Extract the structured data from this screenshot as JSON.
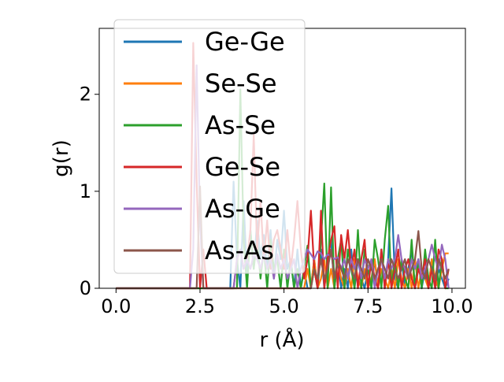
{
  "chart_data": {
    "type": "line",
    "xlabel": "r (Å)",
    "ylabel": "g(r)",
    "xlim": [
      -0.5,
      10.4
    ],
    "ylim": [
      0,
      2.68
    ],
    "xticks": [
      {
        "value": 0.0,
        "label": "0.0"
      },
      {
        "value": 2.5,
        "label": "2.5"
      },
      {
        "value": 5.0,
        "label": "5.0"
      },
      {
        "value": 7.5,
        "label": "7.5"
      },
      {
        "value": 10.0,
        "label": "10.0"
      }
    ],
    "yticks": [
      {
        "value": 0,
        "label": "0"
      },
      {
        "value": 1,
        "label": "1"
      },
      {
        "value": 2,
        "label": "2"
      }
    ],
    "grid": false,
    "legend_position": "top-left",
    "series": [
      {
        "name": "Ge-Ge",
        "color": "#1f77b4",
        "x": [
          0,
          3.4,
          3.5,
          3.6,
          3.7,
          3.8,
          3.9,
          4.0,
          4.1,
          4.2,
          4.3,
          4.4,
          4.5,
          4.6,
          4.7,
          4.8,
          4.9,
          5.0,
          5.1,
          5.2,
          5.3,
          5.4,
          5.5,
          5.6,
          5.7,
          5.8,
          5.9,
          6.0,
          6.1,
          6.2,
          6.3,
          6.4,
          6.5,
          6.6,
          6.7,
          6.8,
          6.9,
          7.0,
          7.1,
          7.2,
          7.3,
          7.4,
          7.5,
          7.6,
          7.7,
          7.8,
          7.9,
          8.0,
          8.1,
          8.2,
          8.3,
          8.4,
          8.5,
          8.6,
          8.7,
          8.8,
          8.9,
          9.0,
          9.1,
          9.2,
          9.3,
          9.4,
          9.5,
          9.6,
          9.7,
          9.8,
          9.9
        ],
        "y": [
          0,
          0,
          1.1,
          0.3,
          0,
          0.9,
          0.1,
          0.6,
          0.2,
          0.7,
          0.3,
          0.55,
          0.2,
          0.6,
          0.1,
          0.5,
          0.3,
          0.8,
          0.2,
          0.3,
          0,
          0.4,
          0,
          0.2,
          0,
          0,
          0.3,
          0,
          0.4,
          0,
          0.3,
          0.5,
          0,
          0.3,
          0,
          0.2,
          0,
          0.4,
          0,
          0.3,
          0.1,
          0,
          0.2,
          0,
          0.3,
          0,
          0.4,
          0,
          0.3,
          1.03,
          0.1,
          0,
          0.3,
          0,
          0.2,
          0.4,
          0,
          0.3,
          0,
          0.2,
          0,
          0.3,
          0,
          0.2,
          0.1,
          0,
          0.1
        ]
      },
      {
        "name": "Se-Se",
        "color": "#ff7f0e",
        "x": [
          0,
          5.6,
          5.7,
          5.8,
          5.9,
          6.0,
          6.1,
          6.2,
          6.3,
          6.4,
          6.5,
          6.6,
          6.7,
          6.8,
          6.9,
          7.0,
          7.1,
          7.2,
          7.3,
          7.4,
          7.5,
          7.6,
          7.7,
          7.8,
          7.9,
          8.0,
          8.1,
          8.2,
          8.3,
          8.4,
          8.5,
          8.6,
          8.7,
          8.8,
          8.9,
          9.0,
          9.1,
          9.2,
          9.3,
          9.4,
          9.5,
          9.6,
          9.7,
          9.8,
          9.9
        ],
        "y": [
          0,
          0,
          0.2,
          0,
          0.3,
          0,
          0.1,
          0.3,
          0,
          0.2,
          0,
          0.3,
          0.1,
          0,
          0.2,
          0,
          0.3,
          0.1,
          0,
          0.2,
          0,
          0.1,
          0.3,
          0,
          0.2,
          0.1,
          0,
          0.2,
          0,
          0.3,
          0.1,
          0,
          0.2,
          0,
          0.3,
          0,
          0.2,
          0.1,
          0,
          0.3,
          0.1,
          0,
          0.2,
          0.36,
          0.36
        ]
      },
      {
        "name": "As-Se",
        "color": "#2ca02c",
        "x": [
          0,
          3.6,
          3.7,
          3.8,
          3.9,
          4.0,
          4.1,
          4.2,
          4.3,
          4.4,
          4.5,
          4.6,
          4.7,
          4.8,
          4.9,
          5.0,
          5.1,
          5.2,
          5.3,
          5.4,
          5.5,
          5.6,
          5.7,
          5.8,
          5.9,
          6.0,
          6.1,
          6.2,
          6.3,
          6.4,
          6.5,
          6.6,
          6.7,
          6.8,
          6.9,
          7.0,
          7.1,
          7.2,
          7.3,
          7.4,
          7.5,
          7.6,
          7.7,
          7.8,
          7.9,
          8.0,
          8.1,
          8.2,
          8.3,
          8.4,
          8.5,
          8.6,
          8.7,
          8.8,
          8.9,
          9.0,
          9.1,
          9.2,
          9.3,
          9.4,
          9.5,
          9.6,
          9.7,
          9.8,
          9.9
        ],
        "y": [
          0,
          0,
          2.05,
          0.5,
          0,
          0.6,
          0.2,
          0.5,
          0.1,
          0.4,
          0,
          0.5,
          0.2,
          0.3,
          0,
          0.4,
          0,
          0.3,
          0,
          0.2,
          0,
          0.2,
          0.44,
          0,
          0.2,
          0,
          0.5,
          1.08,
          0,
          1.04,
          0,
          0.3,
          0.5,
          0,
          0.4,
          0.2,
          0,
          0.6,
          0,
          0.4,
          0.2,
          0,
          0.5,
          0.3,
          0,
          0.5,
          0.85,
          0,
          0.3,
          0,
          0.3,
          0.1,
          0,
          0.5,
          0,
          0.3,
          0,
          0.4,
          0.1,
          0,
          0.5,
          0,
          0.3,
          0,
          0
        ]
      },
      {
        "name": "Ge-Se",
        "color": "#d62728",
        "x": [
          0,
          2.2,
          2.3,
          2.4,
          2.5,
          2.6,
          2.7,
          2.8,
          3.0,
          3.5,
          3.6,
          3.7,
          3.8,
          3.9,
          4.0,
          4.1,
          4.2,
          4.3,
          4.4,
          4.5,
          4.6,
          4.7,
          4.8,
          4.9,
          5.0,
          5.1,
          5.2,
          5.3,
          5.4,
          5.5,
          5.6,
          5.7,
          5.8,
          5.9,
          6.0,
          6.1,
          6.2,
          6.3,
          6.4,
          6.5,
          6.6,
          6.7,
          6.8,
          6.9,
          7.0,
          7.1,
          7.2,
          7.3,
          7.4,
          7.5,
          7.6,
          7.7,
          7.8,
          7.9,
          8.0,
          8.1,
          8.2,
          8.3,
          8.4,
          8.5,
          8.6,
          8.7,
          8.8,
          8.9,
          9.0,
          9.1,
          9.2,
          9.3,
          9.4,
          9.5,
          9.6,
          9.7,
          9.8,
          9.9
        ],
        "y": [
          0,
          0,
          2.53,
          1.1,
          0,
          0.4,
          0,
          0,
          0,
          0,
          0.3,
          0.4,
          0.2,
          0.3,
          0.6,
          1.58,
          0.4,
          0.9,
          0.3,
          0.7,
          0.2,
          0.5,
          0.6,
          0.4,
          0.2,
          0.6,
          0.2,
          0.5,
          0.9,
          0.4,
          0.1,
          0.3,
          0.8,
          0.2,
          0,
          0.8,
          0,
          0.3,
          0.5,
          0.64,
          0,
          0.55,
          0.3,
          0.6,
          0.2,
          0.4,
          0,
          0.3,
          0.5,
          0,
          0.3,
          0.1,
          0,
          0.4,
          0,
          0.3,
          0,
          0.2,
          0.4,
          0,
          0.2,
          0.3,
          0.1,
          0,
          0.2,
          0.1,
          0.3,
          0,
          0.2,
          0,
          0.4,
          0.3,
          0,
          0.2
        ]
      },
      {
        "name": "As-Ge",
        "color": "#9467bd",
        "x": [
          0,
          2.2,
          2.3,
          2.4,
          2.5,
          2.6,
          2.7,
          3.5,
          3.6,
          3.7,
          3.8,
          3.9,
          4.0,
          4.1,
          4.2,
          4.3,
          4.4,
          4.5,
          4.6,
          4.7,
          4.8,
          4.9,
          5.0,
          5.1,
          5.2,
          5.3,
          5.4,
          5.5,
          5.6,
          5.7,
          5.8,
          5.9,
          6.0,
          6.1,
          6.2,
          6.3,
          6.4,
          6.5,
          6.6,
          6.7,
          6.8,
          6.9,
          7.0,
          7.1,
          7.2,
          7.3,
          7.4,
          7.5,
          7.6,
          7.7,
          7.8,
          7.9,
          8.0,
          8.1,
          8.2,
          8.3,
          8.4,
          8.5,
          8.6,
          8.7,
          8.8,
          8.9,
          9.0,
          9.1,
          9.2,
          9.3,
          9.4,
          9.5,
          9.6,
          9.7,
          9.8,
          9.9
        ],
        "y": [
          0,
          0,
          0.4,
          2.3,
          0.7,
          0,
          0,
          0,
          0.3,
          0.4,
          0.2,
          0.3,
          0.2,
          0.35,
          0.3,
          0.2,
          0.35,
          0.2,
          0.3,
          0.1,
          0.35,
          0.2,
          0.3,
          0.1,
          0.2,
          0.3,
          0,
          0.2,
          0.3,
          0.4,
          0.35,
          0.3,
          0.38,
          0.36,
          0.3,
          0.35,
          0.33,
          0.3,
          0.32,
          0.2,
          0.3,
          0.1,
          0.3,
          0.2,
          0.3,
          0.1,
          0.3,
          0.2,
          0.3,
          0,
          0.2,
          0.3,
          0.1,
          0.3,
          0.2,
          0.3,
          0.55,
          0.3,
          0.2,
          0.1,
          0.3,
          0.2,
          0.3,
          0.1,
          0.2,
          0.3,
          0.45,
          0.3,
          0.2,
          0.45,
          0.3,
          0
        ]
      },
      {
        "name": "As-As",
        "color": "#8c564b",
        "x": [
          0,
          2.4,
          2.5,
          2.6,
          2.7,
          2.8,
          5.8,
          5.9,
          6.0,
          6.1,
          6.2,
          6.3,
          6.4,
          6.5,
          6.6,
          6.7,
          6.8,
          6.9,
          7.0,
          7.1,
          7.2,
          7.3,
          7.4,
          7.5,
          7.6,
          7.7,
          7.8,
          7.9,
          8.0,
          8.1,
          8.2,
          8.3,
          8.4,
          8.5,
          8.6,
          8.7,
          8.8,
          8.9,
          9.0,
          9.1,
          9.2,
          9.3,
          9.4,
          9.5,
          9.6,
          9.7,
          9.8,
          9.9
        ],
        "y": [
          0,
          0,
          1.05,
          0,
          0,
          0,
          0,
          0.2,
          0.1,
          0.3,
          0.1,
          0.2,
          0.4,
          0.1,
          0.3,
          0.2,
          0.1,
          0.3,
          0.2,
          0.1,
          0.3,
          0.2,
          0.1,
          0.3,
          0.2,
          0.1,
          0.2,
          0.3,
          0.2,
          0.1,
          0.3,
          0.2,
          0.1,
          0.2,
          0.3,
          0.1,
          0.2,
          0.3,
          0.59,
          0.2,
          0.1,
          0.3,
          0.2,
          0.1,
          0.3,
          0.2,
          0.1,
          0.2
        ]
      }
    ]
  }
}
